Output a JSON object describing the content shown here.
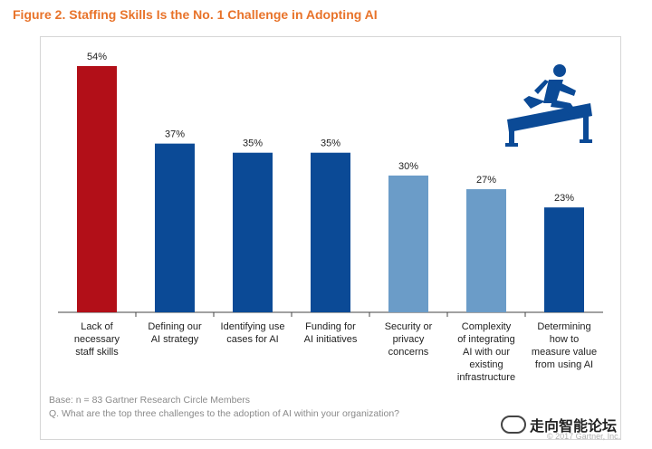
{
  "figure_title": "Figure 2. Staffing Skills Is the No. 1 Challenge in Adopting AI",
  "footnotes": {
    "base": "Base: n = 83 Gartner Research Circle Members",
    "question": "Q. What are the top three challenges to the adoption of AI within your organization?"
  },
  "copyright": "© 2017 Gartner, Inc.",
  "watermark": "走向智能论坛",
  "icons": [
    "hurdle-runner-icon",
    "wechat-icon"
  ],
  "colors": {
    "highlight_bar": "#b20f18",
    "dark_bar": "#0b4a96",
    "light_bar": "#6b9cc8",
    "title": "#e8732a",
    "icon": "#0b4a96"
  },
  "chart_data": {
    "type": "bar",
    "categories": [
      [
        "Lack of",
        "necessary",
        "staff skills"
      ],
      [
        "Defining our",
        "AI strategy"
      ],
      [
        "Identifying use",
        "cases for AI"
      ],
      [
        "Funding for",
        "AI initiatives"
      ],
      [
        "Security or",
        "privacy",
        "concerns"
      ],
      [
        "Complexity",
        "of integrating",
        "AI with our",
        "existing",
        "infrastructure"
      ],
      [
        "Determining",
        "how to",
        "measure value",
        "from using AI"
      ]
    ],
    "values": [
      54,
      37,
      35,
      35,
      30,
      27,
      23
    ],
    "value_labels": [
      "54%",
      "37%",
      "35%",
      "35%",
      "30%",
      "27%",
      "23%"
    ],
    "bar_colors": [
      "#b20f18",
      "#0b4a96",
      "#0b4a96",
      "#0b4a96",
      "#6b9cc8",
      "#6b9cc8",
      "#0b4a96"
    ],
    "ylim": [
      0,
      54
    ],
    "grid": false,
    "legend": "none"
  }
}
